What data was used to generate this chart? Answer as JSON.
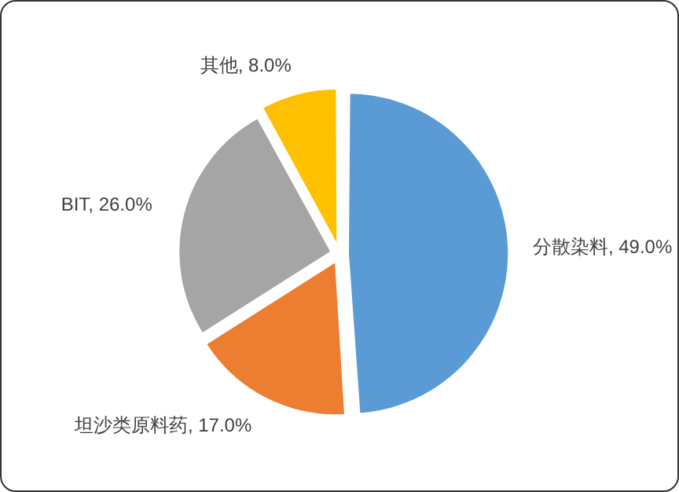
{
  "chart_data": {
    "type": "pie",
    "categories": [
      "分散染料",
      "坦沙类原料药",
      "BIT",
      "其他"
    ],
    "values": [
      49.0,
      17.0,
      26.0,
      8.0
    ],
    "colors": [
      "#5b9bd5",
      "#ed7d31",
      "#a5a5a5",
      "#ffc000"
    ],
    "value_labels": [
      "49.0%",
      "17.0%",
      "26.0%",
      "8.0%"
    ],
    "legend": false
  }
}
